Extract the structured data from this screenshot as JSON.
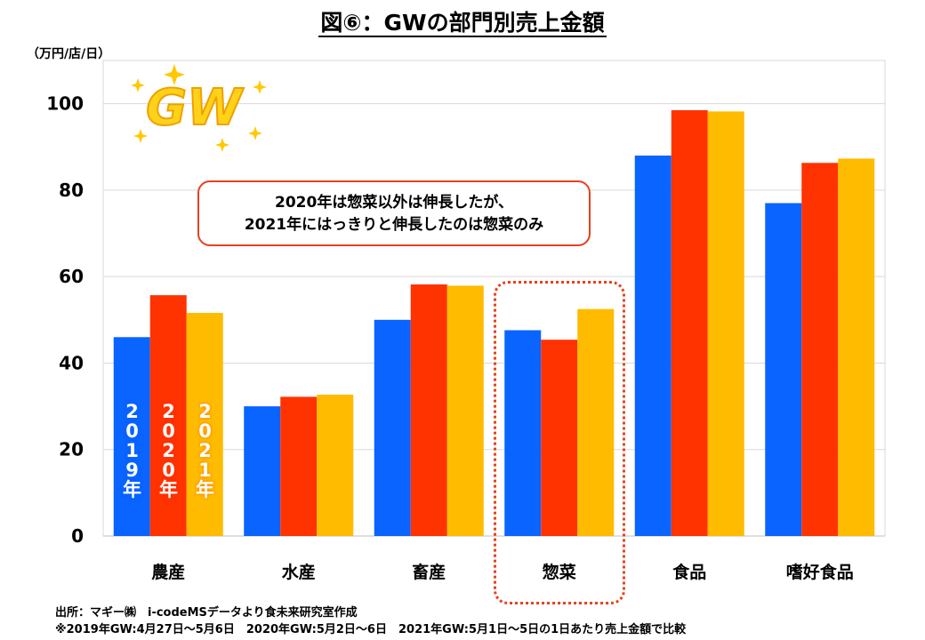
{
  "chart_data": {
    "type": "bar",
    "title": "図⑥：GWの部門別売上金額",
    "ylabel": "（万円/店/日）",
    "xlabel": "",
    "ylim": [
      0,
      110
    ],
    "yticks": [
      0,
      20,
      40,
      60,
      80,
      100
    ],
    "grid": true,
    "categories": [
      "農産",
      "水産",
      "畜産",
      "惣菜",
      "食品",
      "嗜好食品"
    ],
    "series": [
      {
        "name": "2019年",
        "color": "#0a64ff",
        "values": [
          46,
          30,
          50,
          47.6,
          88,
          77
        ]
      },
      {
        "name": "2020年",
        "color": "#ff3300",
        "values": [
          55.7,
          32.2,
          58.2,
          45.4,
          98.5,
          86.3
        ]
      },
      {
        "name": "2021年",
        "color": "#ffbb00",
        "values": [
          51.6,
          32.7,
          57.9,
          52.5,
          98.2,
          87.3
        ]
      }
    ],
    "series_labels_vertical": [
      "2019年",
      "2020年",
      "2021年"
    ],
    "annotation": [
      "2020年は惣菜以外は伸長したが、",
      "2021年にはっきりと伸長したのは惣菜のみ"
    ],
    "highlight_category": "惣菜"
  },
  "logo_text": "GW",
  "footer": {
    "source": "出所：マギー㈱　i-codeMSデータより食未来研究室作成",
    "note": "※2019年GW:4月27日～5月6日　2020年GW:5月2日～6日　2021年GW:5月1日～5日の1日あたり売上金額で比較"
  }
}
